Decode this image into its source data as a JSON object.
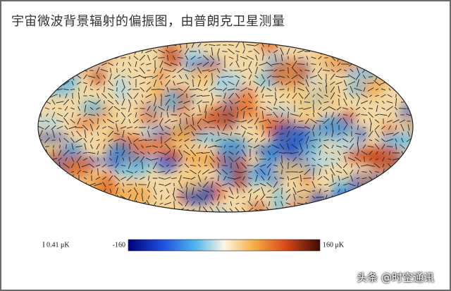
{
  "caption": "宇宙微波背景辐射的偏振图，由普朗克卫星测量",
  "figure": {
    "scale_label": "0.41 μK",
    "colorbar": {
      "min_label": "-160",
      "max_label": "160 μK"
    }
  },
  "watermark": "头条 @时空通讯"
}
